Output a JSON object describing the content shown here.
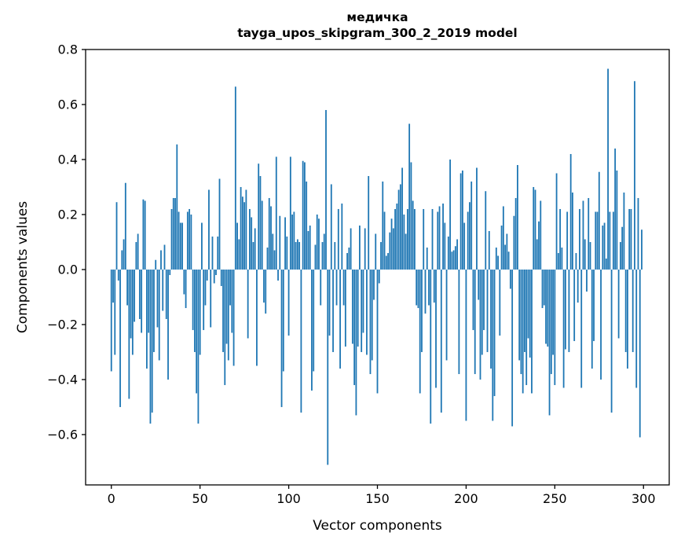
{
  "figure": {
    "title_line1": "медичка",
    "title_line2": "tayga_upos_skipgram_300_2_2019 model",
    "xlabel": "Vector components",
    "ylabel": "Components values"
  },
  "chart_data": {
    "type": "bar",
    "title": "медичка — tayga_upos_skipgram_300_2_2019 model",
    "xlabel": "Vector components",
    "ylabel": "Components values",
    "bar_color": "#1f77b4",
    "axis_color": "#000000",
    "background_color": "#ffffff",
    "legend": "none",
    "grid": false,
    "n_bars": 300,
    "x_start": 0,
    "x_ticks": [
      0,
      50,
      100,
      150,
      200,
      250,
      300
    ],
    "x_tick_labels": [
      "0",
      "50",
      "100",
      "150",
      "200",
      "250",
      "300"
    ],
    "y_ticks": [
      0.8,
      0.6,
      0.4,
      0.2,
      0.0,
      -0.2,
      -0.4,
      -0.6
    ],
    "y_tick_labels": [
      "0.8",
      "0.6",
      "0.4",
      "0.2",
      "0.0",
      "−0.2",
      "−0.4",
      "−0.6"
    ],
    "xlim": [
      -14.5,
      314.5
    ],
    "ylim": [
      -0.783,
      0.8
    ],
    "values": [
      -0.37,
      -0.12,
      -0.31,
      0.245,
      -0.04,
      -0.5,
      0.07,
      0.11,
      0.315,
      -0.13,
      -0.47,
      -0.25,
      -0.31,
      -0.19,
      0.1,
      0.13,
      -0.18,
      -0.23,
      0.255,
      0.25,
      -0.36,
      -0.23,
      -0.56,
      -0.52,
      -0.3,
      0.035,
      -0.21,
      -0.33,
      0.07,
      -0.15,
      0.09,
      -0.18,
      -0.4,
      -0.02,
      0.22,
      0.26,
      0.26,
      0.455,
      0.21,
      0.17,
      0.17,
      -0.09,
      -0.14,
      0.21,
      0.22,
      0.2,
      -0.22,
      -0.3,
      -0.45,
      -0.56,
      -0.31,
      0.17,
      -0.22,
      -0.13,
      -0.04,
      0.29,
      -0.21,
      0.12,
      -0.05,
      -0.02,
      0.12,
      0.33,
      -0.06,
      -0.3,
      -0.42,
      -0.27,
      -0.33,
      -0.13,
      -0.23,
      -0.35,
      0.665,
      0.17,
      0.11,
      0.3,
      0.265,
      0.245,
      0.29,
      -0.25,
      0.22,
      0.19,
      0.1,
      0.15,
      -0.35,
      0.385,
      0.34,
      0.25,
      -0.12,
      -0.16,
      0.08,
      0.26,
      0.23,
      0.13,
      0.07,
      0.41,
      -0.04,
      0.195,
      -0.5,
      -0.37,
      0.19,
      0.12,
      -0.24,
      0.41,
      0.2,
      0.21,
      0.1,
      0.11,
      0.1,
      -0.52,
      0.395,
      0.39,
      0.32,
      0.14,
      0.16,
      -0.44,
      -0.37,
      0.09,
      0.2,
      0.185,
      -0.13,
      0.1,
      0.13,
      0.58,
      -0.71,
      -0.24,
      0.31,
      -0.3,
      0.1,
      -0.13,
      0.22,
      -0.36,
      0.24,
      -0.13,
      -0.28,
      0.06,
      0.08,
      0.15,
      -0.27,
      -0.42,
      -0.53,
      -0.28,
      0.16,
      -0.3,
      -0.23,
      0.15,
      -0.31,
      0.34,
      -0.38,
      -0.33,
      -0.11,
      0.13,
      -0.45,
      -0.05,
      0.1,
      0.32,
      0.21,
      0.05,
      0.06,
      0.135,
      0.185,
      0.15,
      0.22,
      0.24,
      0.29,
      0.31,
      0.37,
      0.2,
      0.13,
      0.22,
      0.53,
      0.39,
      0.25,
      0.22,
      -0.13,
      -0.14,
      -0.45,
      -0.3,
      0.22,
      -0.16,
      0.08,
      -0.13,
      -0.56,
      0.22,
      -0.12,
      -0.43,
      0.21,
      0.23,
      -0.52,
      0.24,
      0.17,
      -0.33,
      0.12,
      0.4,
      0.065,
      0.07,
      0.085,
      0.11,
      -0.38,
      0.35,
      0.36,
      0.17,
      -0.55,
      0.21,
      0.245,
      0.32,
      -0.22,
      -0.38,
      0.37,
      -0.11,
      -0.4,
      -0.31,
      -0.22,
      0.285,
      -0.3,
      0.14,
      -0.36,
      -0.55,
      -0.46,
      0.08,
      0.05,
      -0.24,
      0.16,
      0.23,
      0.09,
      0.13,
      0.065,
      -0.07,
      -0.57,
      0.195,
      0.26,
      0.38,
      -0.33,
      -0.38,
      -0.45,
      -0.3,
      -0.42,
      -0.25,
      -0.32,
      -0.45,
      0.3,
      0.29,
      0.11,
      0.175,
      0.25,
      -0.14,
      -0.13,
      -0.27,
      -0.28,
      -0.53,
      -0.38,
      -0.31,
      -0.42,
      0.35,
      0.06,
      0.22,
      0.08,
      -0.43,
      -0.29,
      0.21,
      -0.3,
      0.42,
      0.28,
      -0.26,
      0.06,
      -0.12,
      0.22,
      -0.43,
      0.25,
      0.11,
      -0.08,
      0.26,
      0.1,
      -0.36,
      -0.26,
      0.21,
      0.21,
      0.355,
      -0.4,
      0.16,
      0.17,
      0.04,
      0.73,
      0.21,
      -0.52,
      0.21,
      0.44,
      0.36,
      -0.25,
      0.1,
      0.155,
      0.28,
      -0.3,
      -0.36,
      0.22,
      0.22,
      -0.3,
      0.685,
      -0.43,
      0.26,
      -0.61,
      0.145
    ]
  }
}
